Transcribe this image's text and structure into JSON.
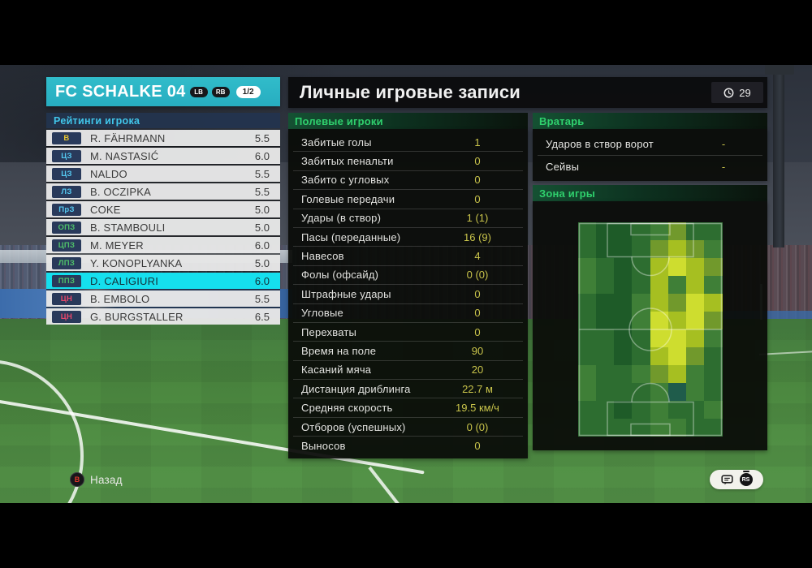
{
  "team_panel": {
    "title": "FC SCHALKE 04",
    "prev_button": "LB",
    "next_button": "RB",
    "page_indicator": "1/2",
    "section_title": "Рейтинги игрока",
    "players": [
      {
        "pos": "В",
        "type": "gk",
        "name": "R. FÄHRMANN",
        "rating": "5.5",
        "selected": false
      },
      {
        "pos": "ЦЗ",
        "type": "def",
        "name": "M. NASTASIĆ",
        "rating": "6.0",
        "selected": false
      },
      {
        "pos": "ЦЗ",
        "type": "def",
        "name": "NALDO",
        "rating": "5.5",
        "selected": false
      },
      {
        "pos": "ЛЗ",
        "type": "def",
        "name": "B. OCZIPKA",
        "rating": "5.5",
        "selected": false
      },
      {
        "pos": "ПрЗ",
        "type": "def",
        "name": "COKE",
        "rating": "5.0",
        "selected": false
      },
      {
        "pos": "ОПЗ",
        "type": "mid",
        "name": "B. STAMBOULI",
        "rating": "5.0",
        "selected": false
      },
      {
        "pos": "ЦПЗ",
        "type": "mid",
        "name": "M. MEYER",
        "rating": "6.0",
        "selected": false
      },
      {
        "pos": "ЛПЗ",
        "type": "mid",
        "name": "Y. KONOPLYANKA",
        "rating": "5.0",
        "selected": false
      },
      {
        "pos": "ППЗ",
        "type": "mid",
        "name": "D. CALIGIURI",
        "rating": "6.0",
        "selected": true
      },
      {
        "pos": "ЦН",
        "type": "fwd",
        "name": "B. EMBOLO",
        "rating": "5.5",
        "selected": false
      },
      {
        "pos": "ЦН",
        "type": "fwd",
        "name": "G. BURGSTALLER",
        "rating": "6.5",
        "selected": false
      }
    ]
  },
  "main": {
    "title": "Личные игровые записи",
    "clock_value": "29",
    "field_players": {
      "header": "Полевые игроки",
      "stats": [
        {
          "label": "Забитые голы",
          "value": "1"
        },
        {
          "label": "Забитых пенальти",
          "value": "0"
        },
        {
          "label": "Забито с угловых",
          "value": "0"
        },
        {
          "label": "Голевые передачи",
          "value": "0"
        },
        {
          "label": "Удары (в створ)",
          "value": "1 (1)"
        },
        {
          "label": "Пасы (переданные)",
          "value": "16 (9)"
        },
        {
          "label": "Навесов",
          "value": "4"
        },
        {
          "label": "Фолы (офсайд)",
          "value": "0 (0)"
        },
        {
          "label": "Штрафные удары",
          "value": "0"
        },
        {
          "label": "Угловые",
          "value": "0"
        },
        {
          "label": "Перехваты",
          "value": "0"
        },
        {
          "label": "Время на поле",
          "value": "90"
        },
        {
          "label": "Касаний мяча",
          "value": "20"
        },
        {
          "label": "Дистанция дриблинга",
          "value": "22.7 м"
        },
        {
          "label": "Средняя скорость",
          "value": "19.5 км/ч"
        },
        {
          "label": "Отборов (успешных)",
          "value": "0 (0)"
        },
        {
          "label": "Выносов",
          "value": "0"
        }
      ]
    },
    "goalkeeper": {
      "header": "Вратарь",
      "stats": [
        {
          "label": "Ударов в створ ворот",
          "value": "-"
        },
        {
          "label": "Сейвы",
          "value": "-"
        }
      ]
    },
    "zone": {
      "header": "Зона игры",
      "heatmap": {
        "cols": 8,
        "rows": 12,
        "cells": [
          "MDDMGOMM",
          "MDDMOYOG",
          "GMDMYBYO",
          "GMDMYGYG",
          "MDDGYOBY",
          "MDDGBYBO",
          "MMDMBBYG",
          "MMDMYBOM",
          "GMMGOYGM",
          "GMMMGTGM",
          "MMDMGMMG",
          "MMMMGGMM"
        ],
        "palette": {
          "D": "#1e5b28",
          "M": "#2d6d30",
          "G": "#3f7f37",
          "O": "#71992c",
          "Y": "#a6bf21",
          "B": "#cedd2f",
          "T": "#1f5c4b"
        }
      }
    }
  },
  "footer": {
    "back_button_label": "B",
    "back_label": "Назад",
    "rs_button_label": "RS"
  },
  "colors": {
    "accent_teal": "#2bb2c4",
    "selected_cyan": "#15dfee",
    "value_yellow": "#c9c44b",
    "header_green": "#2fd06d",
    "ratings_header_cyan": "#41c6ea",
    "pos_gk": "#e6c531",
    "pos_def": "#55c9f2",
    "pos_mid": "#4fc06a",
    "pos_fwd": "#e8476a"
  }
}
